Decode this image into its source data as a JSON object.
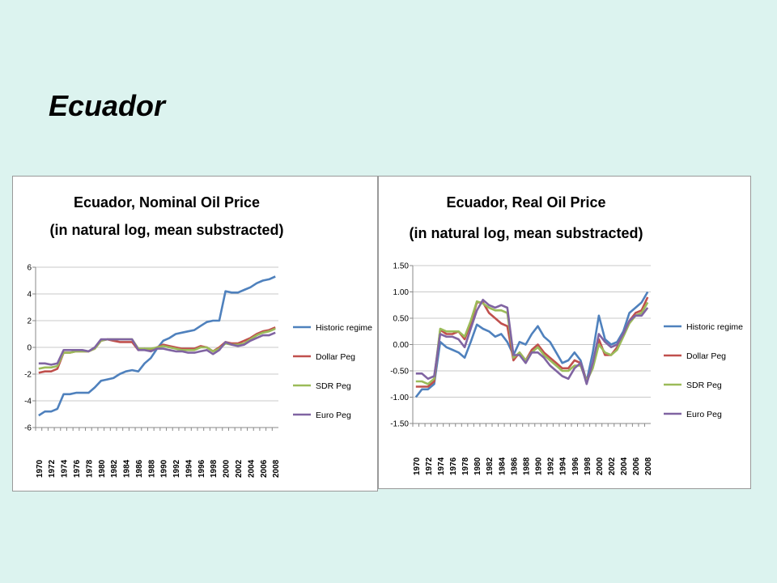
{
  "slide": {
    "title": "Ecuador"
  },
  "chart_data": [
    {
      "type": "line",
      "title_line1": "Ecuador, Nominal Oil Price",
      "title_line2": "(in natural log, mean substracted)",
      "ylim": [
        -6,
        6
      ],
      "yticks": [
        "-6",
        "-4",
        "-2",
        "0",
        "2",
        "4",
        "6"
      ],
      "ytick_values": [
        -6,
        -4,
        -2,
        0,
        2,
        4,
        6
      ],
      "x": [
        1970,
        1971,
        1972,
        1973,
        1974,
        1975,
        1976,
        1977,
        1978,
        1979,
        1980,
        1981,
        1982,
        1983,
        1984,
        1985,
        1986,
        1987,
        1988,
        1989,
        1990,
        1991,
        1992,
        1993,
        1994,
        1995,
        1996,
        1997,
        1998,
        1999,
        2000,
        2001,
        2002,
        2003,
        2004,
        2005,
        2006,
        2007,
        2008
      ],
      "xtick_labels": [
        "1970",
        "1972",
        "1974",
        "1976",
        "1978",
        "1980",
        "1982",
        "1984",
        "1986",
        "1988",
        "1990",
        "1992",
        "1994",
        "1996",
        "1998",
        "2000",
        "2002",
        "2004",
        "2006",
        "2008"
      ],
      "grid": "horizontal",
      "legend_position": "right",
      "series": [
        {
          "name": "Historic regime",
          "color": "#4f81bd",
          "values": [
            -5.1,
            -4.8,
            -4.8,
            -4.6,
            -3.5,
            -3.5,
            -3.4,
            -3.4,
            -3.4,
            -3.0,
            -2.5,
            -2.4,
            -2.3,
            -2.0,
            -1.8,
            -1.7,
            -1.8,
            -1.2,
            -0.8,
            -0.1,
            0.5,
            0.7,
            1.0,
            1.1,
            1.2,
            1.3,
            1.6,
            1.9,
            2.0,
            2.0,
            4.2,
            4.1,
            4.1,
            4.3,
            4.5,
            4.8,
            5.0,
            5.1,
            5.3
          ]
        },
        {
          "name": "Dollar Peg",
          "color": "#c0504d",
          "values": [
            -1.9,
            -1.8,
            -1.8,
            -1.6,
            -0.4,
            -0.4,
            -0.3,
            -0.3,
            -0.3,
            -0.1,
            0.5,
            0.6,
            0.5,
            0.4,
            0.4,
            0.4,
            -0.2,
            -0.1,
            -0.2,
            0.0,
            0.2,
            0.1,
            0.0,
            -0.1,
            -0.1,
            -0.1,
            0.1,
            0.0,
            -0.3,
            0.0,
            0.4,
            0.3,
            0.3,
            0.5,
            0.7,
            1.0,
            1.2,
            1.3,
            1.5
          ]
        },
        {
          "name": "SDR Peg",
          "color": "#9bbb59",
          "values": [
            -1.6,
            -1.5,
            -1.5,
            -1.4,
            -0.4,
            -0.4,
            -0.3,
            -0.3,
            -0.3,
            -0.1,
            0.5,
            0.6,
            0.6,
            0.6,
            0.6,
            0.6,
            -0.1,
            -0.1,
            -0.1,
            0.0,
            0.1,
            0.0,
            -0.1,
            -0.2,
            -0.2,
            -0.2,
            0.0,
            0.0,
            -0.3,
            -0.1,
            0.3,
            0.2,
            0.2,
            0.3,
            0.6,
            0.9,
            1.1,
            1.2,
            1.4
          ]
        },
        {
          "name": "Euro Peg",
          "color": "#8064a2",
          "values": [
            -1.2,
            -1.2,
            -1.3,
            -1.2,
            -0.2,
            -0.2,
            -0.2,
            -0.2,
            -0.3,
            0.0,
            0.6,
            0.6,
            0.6,
            0.6,
            0.6,
            0.6,
            -0.2,
            -0.2,
            -0.3,
            -0.1,
            -0.1,
            -0.2,
            -0.3,
            -0.3,
            -0.4,
            -0.4,
            -0.3,
            -0.2,
            -0.5,
            -0.2,
            0.4,
            0.2,
            0.1,
            0.2,
            0.5,
            0.7,
            0.9,
            0.9,
            1.1
          ]
        }
      ]
    },
    {
      "type": "line",
      "title_line1": "Ecuador, Real Oil Price",
      "title_line2": "(in natural log, mean substracted)",
      "ylim": [
        -1.5,
        1.5
      ],
      "yticks": [
        "-1.50",
        "-1.00",
        "-0.50",
        "0.00",
        "0.50",
        "1.00",
        "1.50"
      ],
      "ytick_values": [
        -1.5,
        -1.0,
        -0.5,
        0.0,
        0.5,
        1.0,
        1.5
      ],
      "x": [
        1970,
        1971,
        1972,
        1973,
        1974,
        1975,
        1976,
        1977,
        1978,
        1979,
        1980,
        1981,
        1982,
        1983,
        1984,
        1985,
        1986,
        1987,
        1988,
        1989,
        1990,
        1991,
        1992,
        1993,
        1994,
        1995,
        1996,
        1997,
        1998,
        1999,
        2000,
        2001,
        2002,
        2003,
        2004,
        2005,
        2006,
        2007,
        2008
      ],
      "xtick_labels": [
        "1970",
        "1972",
        "1974",
        "1976",
        "1978",
        "1980",
        "1982",
        "1984",
        "1986",
        "1988",
        "1990",
        "1992",
        "1994",
        "1996",
        "1998",
        "2000",
        "2002",
        "2004",
        "2006",
        "2008"
      ],
      "grid": "horizontal",
      "legend_position": "right",
      "series": [
        {
          "name": "Historic regime",
          "color": "#4f81bd",
          "values": [
            -1.0,
            -0.85,
            -0.85,
            -0.75,
            0.05,
            -0.05,
            -0.1,
            -0.15,
            -0.25,
            0.05,
            0.38,
            0.3,
            0.25,
            0.15,
            0.2,
            0.05,
            -0.2,
            0.05,
            0.0,
            0.2,
            0.35,
            0.15,
            0.05,
            -0.15,
            -0.35,
            -0.3,
            -0.15,
            -0.3,
            -0.7,
            -0.15,
            0.55,
            0.1,
            0.0,
            0.05,
            0.25,
            0.6,
            0.7,
            0.8,
            1.0
          ]
        },
        {
          "name": "Dollar Peg",
          "color": "#c0504d",
          "values": [
            -0.8,
            -0.8,
            -0.8,
            -0.7,
            0.28,
            0.2,
            0.2,
            0.25,
            0.1,
            0.4,
            0.8,
            0.8,
            0.6,
            0.5,
            0.4,
            0.35,
            -0.3,
            -0.15,
            -0.3,
            -0.1,
            0.0,
            -0.15,
            -0.25,
            -0.35,
            -0.45,
            -0.45,
            -0.3,
            -0.35,
            -0.7,
            -0.4,
            0.1,
            -0.2,
            -0.2,
            -0.05,
            0.2,
            0.45,
            0.6,
            0.65,
            0.9
          ]
        },
        {
          "name": "SDR Peg",
          "color": "#9bbb59",
          "values": [
            -0.7,
            -0.7,
            -0.75,
            -0.65,
            0.3,
            0.25,
            0.25,
            0.25,
            0.15,
            0.45,
            0.82,
            0.78,
            0.7,
            0.65,
            0.65,
            0.6,
            -0.25,
            -0.15,
            -0.3,
            -0.15,
            -0.05,
            -0.2,
            -0.3,
            -0.4,
            -0.5,
            -0.5,
            -0.4,
            -0.4,
            -0.7,
            -0.45,
            0.0,
            -0.15,
            -0.2,
            -0.1,
            0.15,
            0.4,
            0.55,
            0.6,
            0.8
          ]
        },
        {
          "name": "Euro Peg",
          "color": "#8064a2",
          "values": [
            -0.55,
            -0.55,
            -0.65,
            -0.6,
            0.2,
            0.15,
            0.15,
            0.1,
            -0.05,
            0.3,
            0.65,
            0.85,
            0.75,
            0.7,
            0.75,
            0.7,
            -0.2,
            -0.2,
            -0.35,
            -0.15,
            -0.15,
            -0.25,
            -0.4,
            -0.5,
            -0.6,
            -0.65,
            -0.45,
            -0.35,
            -0.75,
            -0.35,
            0.2,
            0.05,
            -0.05,
            0.0,
            0.2,
            0.45,
            0.55,
            0.55,
            0.7
          ]
        }
      ]
    }
  ]
}
